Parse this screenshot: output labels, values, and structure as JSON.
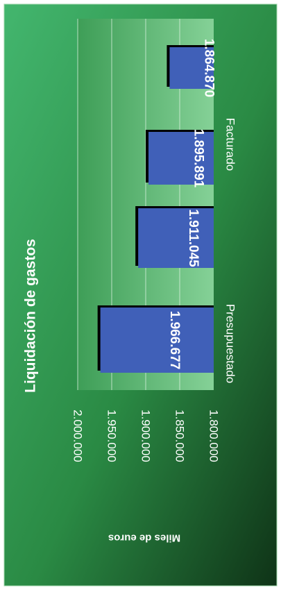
{
  "chart_data": {
    "type": "bar",
    "title": "Liquidación de gastos",
    "ylabel": "Miles de euros",
    "xlabel": "",
    "categories": [
      "Presupuestado",
      "",
      "",
      "Facturado"
    ],
    "values": [
      1966677,
      1911045,
      1895891,
      1864870
    ],
    "value_labels": [
      "1.966.677",
      "1.911.045",
      "1.895.891",
      "1.864.870"
    ],
    "ylim": [
      1800000,
      2000000
    ],
    "yticks": [
      2000000,
      1950000,
      1900000,
      1850000,
      1800000
    ],
    "ytick_labels": [
      "2.000.000",
      "1.950.000",
      "1.900.000",
      "1.850.000",
      "1.800.000"
    ],
    "grid": true,
    "orientation": "rotated 90° clockwise",
    "colors": {
      "bar": "#4060B8",
      "bar_shadow": "#000000",
      "background_light": "#3FB26B",
      "background_dark": "#123E1C",
      "plot_area": "#7CC98E",
      "text": "#ffffff"
    }
  }
}
